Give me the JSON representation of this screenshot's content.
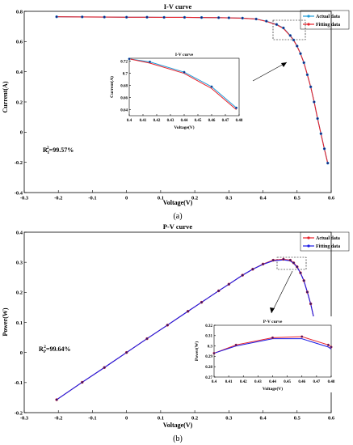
{
  "figure": {
    "panel_a_caption": "(a)",
    "panel_b_caption": "(b)",
    "colors": {
      "actual_iv": "#1f9bd7",
      "fitting_iv": "#e8202a",
      "actual_pv": "#e8202a",
      "fitting_pv": "#1a1ae6",
      "marker": "#1a1a7a"
    }
  },
  "chart_data": [
    {
      "type": "line",
      "title": "I-V curve",
      "xlabel": "Voltage(V)",
      "ylabel": "Current(A)",
      "xlim": [
        -0.3,
        0.6
      ],
      "ylim": [
        -0.4,
        0.8
      ],
      "xticks": [
        "-0.3",
        "-0.2",
        "-0.1",
        "0",
        "0.1",
        "0.2",
        "0.3",
        "0.4",
        "0.5",
        "0.6"
      ],
      "yticks": [
        "-0.4",
        "-0.2",
        "0",
        "0.2",
        "0.4",
        "0.6",
        "0.8"
      ],
      "legend": "top-right",
      "annotation": {
        "text": "R",
        "sub": "I",
        "sup": "2",
        "value": "=99.57%"
      },
      "x": [
        -0.205,
        -0.13,
        -0.065,
        0,
        0.06,
        0.11,
        0.17,
        0.22,
        0.27,
        0.3,
        0.34,
        0.38,
        0.41,
        0.44,
        0.46,
        0.48,
        0.49,
        0.5,
        0.51,
        0.52,
        0.53,
        0.54,
        0.55,
        0.56,
        0.57,
        0.58,
        0.59
      ],
      "series": [
        {
          "name": "Actual data",
          "values": [
            0.764,
            0.763,
            0.762,
            0.761,
            0.761,
            0.76,
            0.76,
            0.759,
            0.758,
            0.757,
            0.755,
            0.749,
            0.735,
            0.713,
            0.69,
            0.64,
            0.61,
            0.57,
            0.52,
            0.46,
            0.38,
            0.3,
            0.2,
            0.09,
            -0.01,
            -0.11,
            -0.205
          ]
        },
        {
          "name": "Fitting data",
          "values": [
            0.764,
            0.763,
            0.762,
            0.761,
            0.761,
            0.76,
            0.76,
            0.759,
            0.758,
            0.757,
            0.755,
            0.749,
            0.733,
            0.711,
            0.687,
            0.637,
            0.608,
            0.568,
            0.519,
            0.459,
            0.381,
            0.299,
            0.201,
            0.091,
            -0.011,
            -0.112,
            -0.207
          ]
        }
      ],
      "inset": {
        "title": "I-V curve",
        "xlabel": "Voltage(V)",
        "ylabel": "Current(A)",
        "xlim": [
          0.4,
          0.48
        ],
        "ylim": [
          0.63,
          0.725
        ],
        "xticks": [
          "0.4",
          "0.41",
          "0.42",
          "0.43",
          "0.44",
          "0.45",
          "0.46",
          "0.47",
          "0.48"
        ],
        "yticks": [
          "0.64",
          "0.66",
          "0.68",
          "0.7",
          "0.72"
        ],
        "x": [
          0.4,
          0.415,
          0.44,
          0.46,
          0.478
        ],
        "series": [
          {
            "name": "Actual data",
            "values": [
              0.724,
              0.719,
              0.702,
              0.678,
              0.643
            ]
          },
          {
            "name": "Fitting data",
            "values": [
              0.724,
              0.717,
              0.7,
              0.675,
              0.64
            ]
          }
        ]
      }
    },
    {
      "type": "line",
      "title": "P-V curve",
      "xlabel": "Voltage(V)",
      "ylabel": "Power(W)",
      "xlim": [
        -0.3,
        0.6
      ],
      "ylim": [
        -0.2,
        0.4
      ],
      "xticks": [
        "-0.3",
        "-0.2",
        "-0.1",
        "0",
        "0.1",
        "0.2",
        "0.3",
        "0.4",
        "0.5",
        "0.6"
      ],
      "yticks": [
        "-0.2",
        "-0.1",
        "0",
        "0.1",
        "0.2",
        "0.3",
        "0.4"
      ],
      "legend": "top-right",
      "annotation": {
        "text": "R",
        "sub": "P",
        "sup": "2",
        "value": "=99.64%"
      },
      "x": [
        -0.205,
        -0.13,
        -0.065,
        0,
        0.06,
        0.12,
        0.18,
        0.22,
        0.27,
        0.3,
        0.34,
        0.37,
        0.4,
        0.43,
        0.46,
        0.48,
        0.49,
        0.5,
        0.51,
        0.52,
        0.53,
        0.54,
        0.55,
        0.56,
        0.57,
        0.58,
        0.585
      ],
      "series": [
        {
          "name": "Actual data",
          "values": [
            -0.157,
            -0.099,
            -0.05,
            0.0,
            0.046,
            0.091,
            0.137,
            0.167,
            0.205,
            0.227,
            0.257,
            0.277,
            0.294,
            0.307,
            0.31,
            0.307,
            0.298,
            0.285,
            0.265,
            0.239,
            0.201,
            0.162,
            0.11,
            0.05,
            -0.006,
            -0.064,
            -0.125
          ]
        },
        {
          "name": "Fitting data",
          "values": [
            -0.157,
            -0.099,
            -0.05,
            0.0,
            0.046,
            0.091,
            0.137,
            0.167,
            0.205,
            0.227,
            0.257,
            0.277,
            0.293,
            0.305,
            0.308,
            0.305,
            0.296,
            0.284,
            0.264,
            0.238,
            0.201,
            0.161,
            0.11,
            0.05,
            -0.006,
            -0.065,
            -0.125
          ]
        }
      ],
      "inset": {
        "title": "P-V curve",
        "xlabel": "Voltage(V)",
        "ylabel": "Power(W)",
        "xlim": [
          0.4,
          0.48
        ],
        "ylim": [
          0.27,
          0.32
        ],
        "xticks": [
          "0.4",
          "0.41",
          "0.42",
          "0.43",
          "0.44",
          "0.45",
          "0.46",
          "0.47",
          "0.48"
        ],
        "yticks": [
          "0.27",
          "0.28",
          "0.29",
          "0.3",
          "0.31",
          "0.32"
        ],
        "x": [
          0.4,
          0.415,
          0.44,
          0.46,
          0.478,
          0.48
        ],
        "series": [
          {
            "name": "Actual data",
            "values": [
              0.293,
              0.301,
              0.308,
              0.309,
              0.301,
              0.299
            ]
          },
          {
            "name": "Fitting data",
            "values": [
              0.293,
              0.3,
              0.307,
              0.307,
              0.299,
              0.297
            ]
          }
        ]
      }
    }
  ]
}
